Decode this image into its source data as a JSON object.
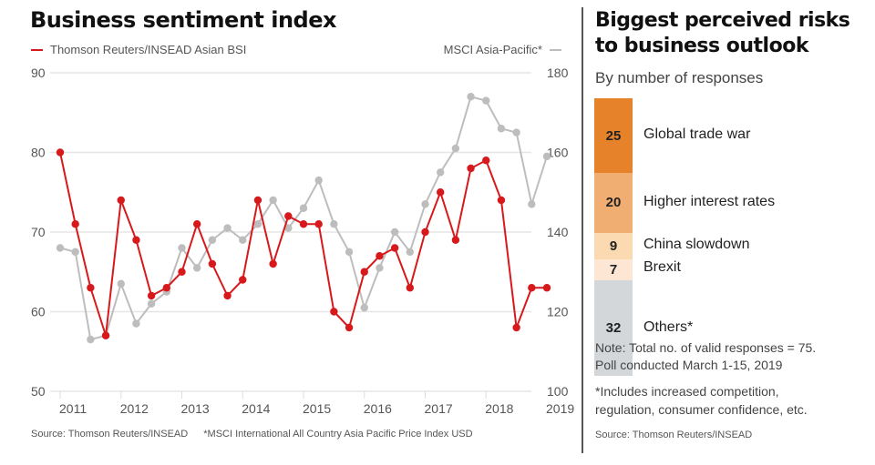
{
  "left_panel": {
    "title": "Business sentiment index",
    "legend_left": "Thomson Reuters/INSEAD Asian BSI",
    "legend_right": "MSCI Asia-Pacific*",
    "source": "Source: Thomson Reuters/INSEAD",
    "footnote": "*MSCI International All Country Asia Pacific Price Index USD"
  },
  "right_panel": {
    "title": "Biggest perceived risks to business outlook",
    "subtitle": "By number of responses",
    "note_1": "Note: Total no. of valid responses = 75.",
    "note_2": "Poll conducted March 1-15, 2019",
    "note_3": "*Includes increased competition,",
    "note_4": "regulation, consumer confidence, etc.",
    "source": "Source: Thomson Reuters/INSEAD"
  },
  "chart_data": [
    {
      "type": "line",
      "title": "Business sentiment index",
      "xlabel": "",
      "x_ticks": [
        "2011",
        "2012",
        "2013",
        "2014",
        "2015",
        "2016",
        "2017",
        "2018",
        "2019"
      ],
      "x_range": [
        2011,
        2019
      ],
      "x": [
        2011.0,
        2011.25,
        2011.5,
        2011.75,
        2012.0,
        2012.25,
        2012.5,
        2012.75,
        2013.0,
        2013.25,
        2013.5,
        2013.75,
        2014.0,
        2014.25,
        2014.5,
        2014.75,
        2015.0,
        2015.25,
        2015.5,
        2015.75,
        2016.0,
        2016.25,
        2016.5,
        2016.75,
        2017.0,
        2017.25,
        2017.5,
        2017.75,
        2018.0,
        2018.25,
        2018.5,
        2018.75,
        2019.0
      ],
      "left_axis": {
        "ticks": [
          50,
          60,
          70,
          80,
          90
        ],
        "range": [
          50,
          90
        ]
      },
      "right_axis": {
        "ticks": [
          100,
          120,
          140,
          160,
          180
        ],
        "range": [
          100,
          180
        ]
      },
      "grid": true,
      "legend": "top",
      "series": [
        {
          "name": "Thomson Reuters/INSEAD Asian BSI",
          "axis": "left",
          "color": "#d7191c",
          "values": [
            80,
            71,
            63,
            57,
            74,
            69,
            62,
            63,
            65,
            71,
            66,
            62,
            64,
            74,
            66,
            72,
            71,
            71,
            60,
            58,
            65,
            67,
            68,
            63,
            70,
            75,
            69,
            78,
            79,
            74,
            58,
            63,
            63
          ]
        },
        {
          "name": "MSCI Asia-Pacific*",
          "axis": "right",
          "color": "#bdbdbd",
          "values": [
            136,
            135,
            113,
            114,
            127,
            117,
            122,
            125,
            136,
            131,
            138,
            141,
            138,
            142,
            148,
            141,
            146,
            153,
            142,
            135,
            121,
            131,
            140,
            135,
            147,
            155,
            161,
            174,
            173,
            166,
            165,
            147,
            159
          ]
        }
      ]
    },
    {
      "type": "bar",
      "stacked": true,
      "title": "Biggest perceived risks to business outlook",
      "subtitle": "By number of responses",
      "total": 75,
      "categories": [
        "Global trade war",
        "Higher interest rates",
        "China slowdown",
        "Brexit",
        "Others*"
      ],
      "values": [
        25,
        20,
        9,
        7,
        32
      ],
      "colors": [
        "#e6832a",
        "#f0ae72",
        "#fbd9b1",
        "#fde7d4",
        "#d3d7da"
      ]
    }
  ]
}
